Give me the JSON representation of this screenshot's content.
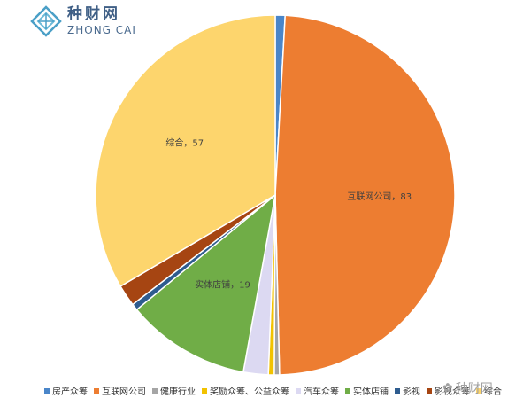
{
  "logo": {
    "name_cn": "种财网",
    "name_en": "ZHONG CAI",
    "icon": "diamond-lattice-icon"
  },
  "watermark": {
    "text": "种财网",
    "icon": "wechat-icon"
  },
  "chart_data": {
    "type": "pie",
    "start_angle_deg": 0,
    "direction": "clockwise",
    "slices": [
      {
        "name": "房产众筹",
        "value": 1.5,
        "color": "#4a86c9",
        "label": ""
      },
      {
        "name": "互联网公司",
        "value": 83,
        "color": "#ed7d31",
        "label": "互联网公司，83"
      },
      {
        "name": "健康行业",
        "value": 0.8,
        "color": "#a5a5a5",
        "label": ""
      },
      {
        "name": "奖励众筹、公益众筹",
        "value": 0.9,
        "color": "#f2c200",
        "label": ""
      },
      {
        "name": "汽车众筹",
        "value": 3.8,
        "color": "#dcd9f2",
        "label": ""
      },
      {
        "name": "实体店铺",
        "value": 19,
        "color": "#70ad47",
        "label": "实体店铺，19"
      },
      {
        "name": "影视",
        "value": 1.0,
        "color": "#2e5c8f",
        "label": ""
      },
      {
        "name": "影视众筹",
        "value": 3.3,
        "color": "#a64512",
        "label": ""
      },
      {
        "name": "综合",
        "value": 57,
        "color": "#fdd56d",
        "label": "综合，57"
      }
    ],
    "legend": {
      "placement": "bottom",
      "items": [
        "房产众筹",
        "互联网公司",
        "健康行业",
        "奖励众筹、公益众筹",
        "汽车众筹",
        "实体店铺",
        "影视",
        "影视众筹",
        "综合"
      ]
    }
  }
}
